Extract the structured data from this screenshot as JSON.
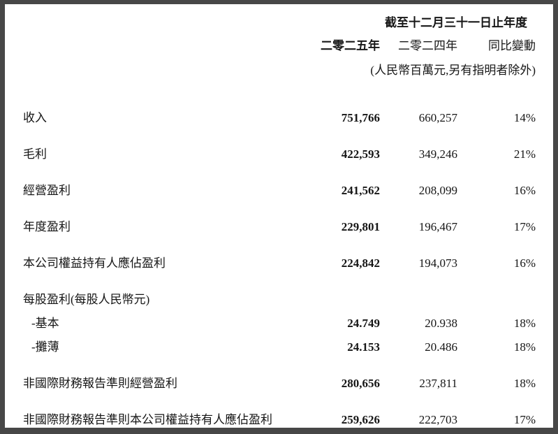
{
  "page": {
    "background_color": "#ffffff",
    "frame_border_color": "#474747",
    "text_color": "#161616"
  },
  "table": {
    "period_header": "截至十二月三十一日止年度",
    "column_headers": [
      "二零二五年",
      "二零二四年",
      "同比變動"
    ],
    "unit_note": "(人民幣百萬元,另有指明者除外)",
    "rows": [
      {
        "label": "收入",
        "y2025": "751,766",
        "y2024": "660,257",
        "yoy": "14%",
        "indent": false
      },
      {
        "label": "毛利",
        "y2025": "422,593",
        "y2024": "349,246",
        "yoy": "21%",
        "indent": false
      },
      {
        "label": "經營盈利",
        "y2025": "241,562",
        "y2024": "208,099",
        "yoy": "16%",
        "indent": false
      },
      {
        "label": "年度盈利",
        "y2025": "229,801",
        "y2024": "196,467",
        "yoy": "17%",
        "indent": false
      },
      {
        "label": "本公司權益持有人應佔盈利",
        "y2025": "224,842",
        "y2024": "194,073",
        "yoy": "16%",
        "indent": false
      },
      {
        "label": "每股盈利(每股人民幣元)",
        "y2025": "",
        "y2024": "",
        "yoy": "",
        "indent": false
      },
      {
        "label": "-基本",
        "y2025": "24.749",
        "y2024": "20.938",
        "yoy": "18%",
        "indent": true
      },
      {
        "label": "-攤薄",
        "y2025": "24.153",
        "y2024": "20.486",
        "yoy": "18%",
        "indent": true
      },
      {
        "label": "非國際財務報告準則經營盈利",
        "y2025": "280,656",
        "y2024": "237,811",
        "yoy": "18%",
        "indent": false
      },
      {
        "label": "非國際財務報告準則本公司權益持有人應佔盈利",
        "y2025": "259,626",
        "y2024": "222,703",
        "yoy": "17%",
        "indent": false
      }
    ]
  }
}
